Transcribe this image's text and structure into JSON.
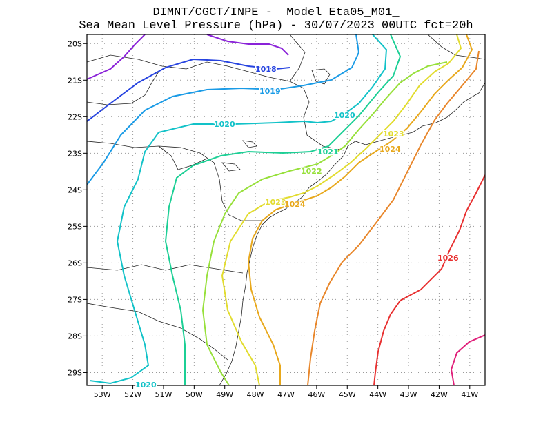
{
  "title": {
    "line1": "DIMNT/CGCT/INPE -  Model Eta05_M01_",
    "line2": "Sea Mean Level Pressure (hPa) - 30/07/2023 00UTC fct=20h"
  },
  "map": {
    "lon_labels": [
      "53W",
      "52W",
      "51W",
      "50W",
      "49W",
      "48W",
      "47W",
      "46W",
      "45W",
      "44W",
      "43W",
      "42W",
      "41W"
    ],
    "lat_labels": [
      "20S",
      "21S",
      "22S",
      "23S",
      "24S",
      "25S",
      "26S",
      "27S",
      "28S",
      "29S"
    ],
    "contour_labels": [
      {
        "text": "1018",
        "color": "#2643e0"
      },
      {
        "text": "1019",
        "color": "#1a9be6"
      },
      {
        "text": "1020",
        "color": "#12c2c8"
      },
      {
        "text": "1020",
        "color": "#12c2c8"
      },
      {
        "text": "1020",
        "color": "#12c2c8"
      },
      {
        "text": "1021",
        "color": "#1ccf95"
      },
      {
        "text": "1022",
        "color": "#97e03a"
      },
      {
        "text": "1023",
        "color": "#e2dc2e"
      },
      {
        "text": "1023",
        "color": "#e2dc2e"
      },
      {
        "text": "1024",
        "color": "#e8a81c"
      },
      {
        "text": "1024",
        "color": "#e8a81c"
      },
      {
        "text": "1026",
        "color": "#e83030"
      }
    ],
    "colors": {
      "c1017": "#8a22d8",
      "c1018": "#2643e0",
      "c1019": "#1a9be6",
      "c1020": "#12c2c8",
      "c1021": "#1ccf95",
      "c1022": "#97e03a",
      "c1023": "#e2dc2e",
      "c1024": "#e8a81c",
      "c1025": "#e8862a",
      "c1026": "#e83030",
      "c1027": "#e0207a"
    }
  }
}
